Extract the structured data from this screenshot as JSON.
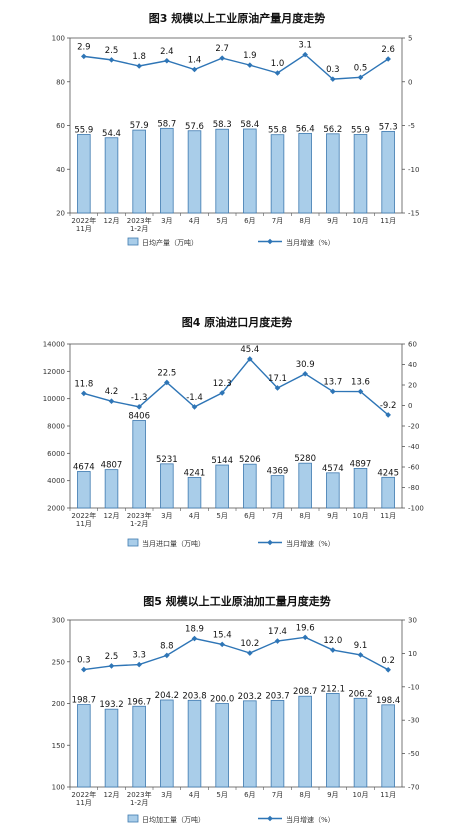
{
  "colors": {
    "bar_fill": "#a9cde9",
    "bar_stroke": "#3f7ab0",
    "line": "#2e75b6",
    "axis": "#555555"
  },
  "chart_data": [
    {
      "type": "bar+line",
      "title": "图3  规模以上工业原油产量月度走势",
      "categories": [
        "2022年\n11月",
        "12月",
        "2023年\n1-2月",
        "3月",
        "4月",
        "5月",
        "6月",
        "7月",
        "8月",
        "9月",
        "10月",
        "11月"
      ],
      "series": [
        {
          "name": "日均产量（万吨）",
          "type": "bar",
          "axis": "left",
          "values": [
            55.9,
            54.4,
            57.9,
            58.7,
            57.6,
            58.3,
            58.4,
            55.8,
            56.4,
            56.2,
            55.9,
            57.3
          ],
          "labels": [
            "55.9",
            "54.4",
            "57.9",
            "58.7",
            "57.6",
            "58.3",
            "58.4",
            "55.8",
            "56.4",
            "56.2",
            "55.9",
            "57.3"
          ]
        },
        {
          "name": "当月增速（%）",
          "type": "line",
          "axis": "right",
          "values": [
            2.9,
            2.5,
            1.8,
            2.4,
            1.4,
            2.7,
            1.9,
            1.0,
            3.1,
            0.3,
            0.5,
            2.6
          ],
          "labels": [
            "2.9",
            "2.5",
            "1.8",
            "2.4",
            "1.4",
            "2.7",
            "1.9",
            "1.0",
            "3.1",
            "0.3",
            "0.5",
            "2.6"
          ]
        }
      ],
      "y_left": {
        "min": 20,
        "max": 100,
        "ticks": [
          "20",
          "40",
          "60",
          "80",
          "100"
        ]
      },
      "y_right": {
        "min": -15,
        "max": 5,
        "ticks": [
          "-15",
          "-10",
          "-5",
          "0",
          "5"
        ]
      },
      "legend": [
        "日均产量（万吨）",
        "当月增速（%）"
      ]
    },
    {
      "type": "bar+line",
      "title": "图4  原油进口月度走势",
      "categories": [
        "2022年\n11月",
        "12月",
        "2023年\n1-2月",
        "3月",
        "4月",
        "5月",
        "6月",
        "7月",
        "8月",
        "9月",
        "10月",
        "11月"
      ],
      "series": [
        {
          "name": "当月进口量（万吨）",
          "type": "bar",
          "axis": "left",
          "values": [
            4674,
            4807,
            8406,
            5231,
            4241,
            5144,
            5206,
            4369,
            5280,
            4574,
            4897,
            4245
          ],
          "labels": [
            "4674",
            "4807",
            "8406",
            "5231",
            "4241",
            "5144",
            "5206",
            "4369",
            "5280",
            "4574",
            "4897",
            "4245"
          ]
        },
        {
          "name": "当月增速（%）",
          "type": "line",
          "axis": "right",
          "values": [
            11.8,
            4.2,
            -1.3,
            22.5,
            -1.4,
            12.3,
            45.4,
            17.1,
            30.9,
            13.7,
            13.6,
            -9.2
          ],
          "labels": [
            "11.8",
            "4.2",
            "-1.3",
            "22.5",
            "-1.4",
            "12.3",
            "45.4",
            "17.1",
            "30.9",
            "13.7",
            "13.6",
            "-9.2"
          ]
        }
      ],
      "y_left": {
        "min": 2000,
        "max": 14000,
        "ticks": [
          "2000",
          "4000",
          "6000",
          "8000",
          "10000",
          "12000",
          "14000"
        ]
      },
      "y_right": {
        "min": -100,
        "max": 60,
        "ticks": [
          "-100",
          "-80",
          "-60",
          "-40",
          "-20",
          "0",
          "20",
          "40",
          "60"
        ]
      },
      "legend": [
        "当月进口量（万吨）",
        "当月增速（%）"
      ]
    },
    {
      "type": "bar+line",
      "title": "图5  规模以上工业原油加工量月度走势",
      "categories": [
        "2022年\n11月",
        "12月",
        "2023年\n1-2月",
        "3月",
        "4月",
        "5月",
        "6月",
        "7月",
        "8月",
        "9月",
        "10月",
        "11月"
      ],
      "series": [
        {
          "name": "日均加工量（万吨）",
          "type": "bar",
          "axis": "left",
          "values": [
            198.7,
            193.2,
            196.7,
            204.2,
            203.8,
            200.0,
            203.2,
            203.7,
            208.7,
            212.1,
            206.2,
            198.4
          ],
          "labels": [
            "198.7",
            "193.2",
            "196.7",
            "204.2",
            "203.8",
            "200.0",
            "203.2",
            "203.7",
            "208.7",
            "212.1",
            "206.2",
            "198.4"
          ]
        },
        {
          "name": "当月增速（%）",
          "type": "line",
          "axis": "right",
          "values": [
            0.3,
            2.5,
            3.3,
            8.8,
            18.9,
            15.4,
            10.2,
            17.4,
            19.6,
            12.0,
            9.1,
            0.2
          ],
          "labels": [
            "0.3",
            "2.5",
            "3.3",
            "8.8",
            "18.9",
            "15.4",
            "10.2",
            "17.4",
            "19.6",
            "12.0",
            "9.1",
            "0.2"
          ]
        }
      ],
      "y_left": {
        "min": 100,
        "max": 300,
        "ticks": [
          "100",
          "150",
          "200",
          "250",
          "300"
        ]
      },
      "y_right": {
        "min": -70,
        "max": 30,
        "ticks": [
          "-70",
          "-50",
          "-30",
          "-10",
          "10",
          "30"
        ]
      },
      "legend": [
        "日均加工量（万吨）",
        "当月增速（%）"
      ]
    }
  ]
}
